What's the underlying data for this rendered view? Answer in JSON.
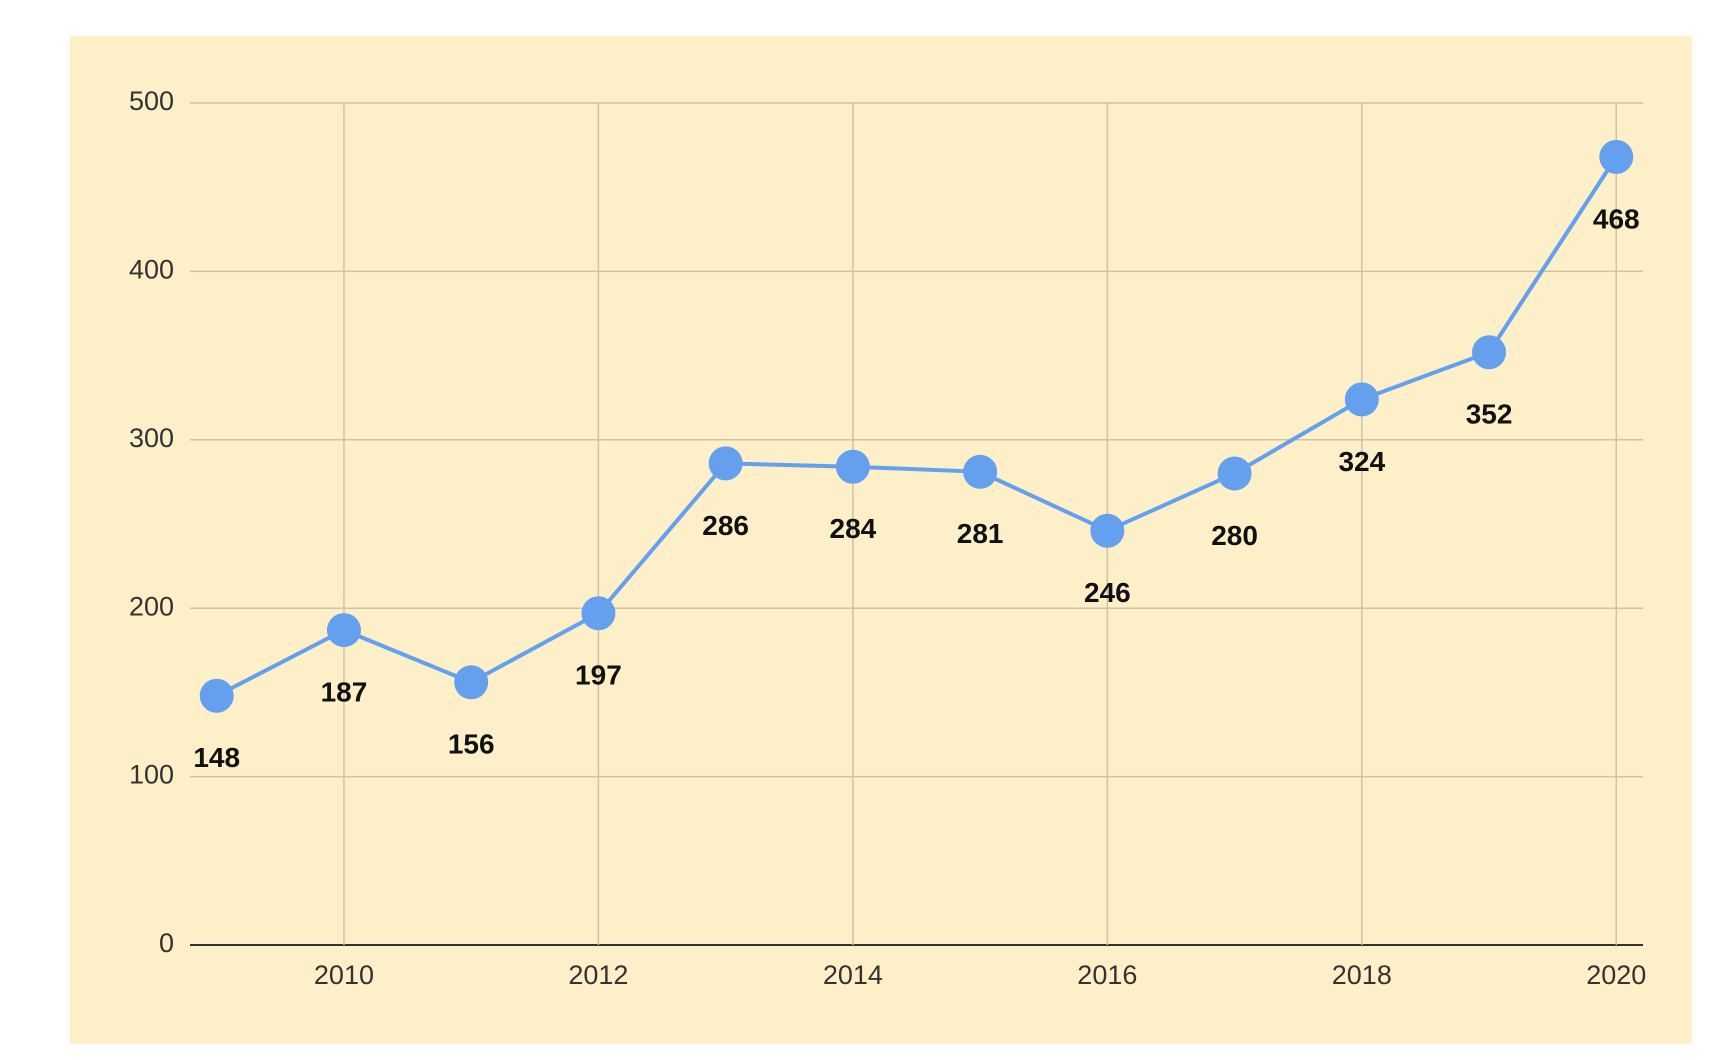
{
  "chart_data": {
    "type": "line",
    "x": [
      2009,
      2010,
      2011,
      2012,
      2013,
      2014,
      2015,
      2016,
      2017,
      2018,
      2019,
      2020
    ],
    "series": [
      {
        "color": "#64a0ee",
        "values": [
          148,
          187,
          156,
          197,
          286,
          284,
          281,
          246,
          280,
          324,
          352,
          468
        ]
      }
    ],
    "xlim": [
      2008.79,
      2020.21
    ],
    "xticks": [
      2010,
      2012,
      2014,
      2016,
      2018,
      2020
    ],
    "ylim": [
      0,
      500
    ],
    "yticks": [
      0,
      100,
      200,
      300,
      400,
      500
    ],
    "grid": true,
    "data_labels": true
  }
}
